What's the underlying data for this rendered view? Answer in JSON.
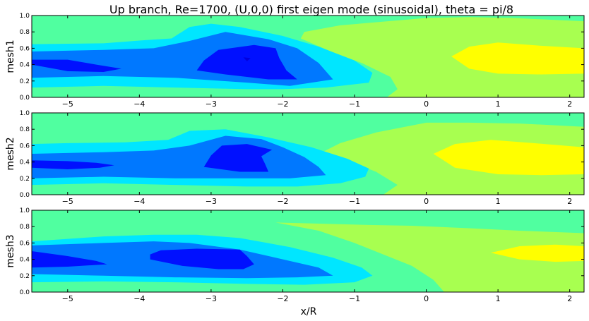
{
  "chart_data": {
    "type": "contour",
    "title": "Up branch, Re=1700, (U,0,0) first eigen mode (sinusoidal), theta = pi/8",
    "xlabel": "x/R",
    "xlim": [
      -5.5,
      2.2
    ],
    "ylim": [
      0.0,
      1.0
    ],
    "x_ticks": [
      "−5",
      "−4",
      "−3",
      "−2",
      "−1",
      "0",
      "1",
      "2"
    ],
    "x_tick_values": [
      -5,
      -4,
      -3,
      -2,
      -1,
      0,
      1,
      2
    ],
    "y_ticks": [
      "0.0",
      "0.2",
      "0.4",
      "0.6",
      "0.8",
      "1.0"
    ],
    "y_tick_values": [
      0.0,
      0.2,
      0.4,
      0.6,
      0.8,
      1.0
    ],
    "levels_colors": [
      "#0000e0",
      "#0010ff",
      "#0078ff",
      "#00e6ff",
      "#50ffa0",
      "#a8ff50",
      "#ffff00"
    ],
    "panels": [
      {
        "ylabel": "mesh1",
        "regions": [
          {
            "color": "#50ffa0",
            "points": [
              [
                -5.5,
                0
              ],
              [
                2.2,
                0
              ],
              [
                2.2,
                1
              ],
              [
                -5.5,
                1
              ]
            ]
          },
          {
            "color": "#a8ff50",
            "points": [
              [
                -0.55,
                0
              ],
              [
                2.2,
                0
              ],
              [
                2.2,
                0.93
              ],
              [
                1.2,
                0.97
              ],
              [
                0.6,
                0.98
              ],
              [
                0.0,
                0.97
              ],
              [
                -1.2,
                0.88
              ],
              [
                -1.7,
                0.8
              ],
              [
                -1.75,
                0.72
              ],
              [
                -1.3,
                0.55
              ],
              [
                -0.9,
                0.42
              ],
              [
                -0.5,
                0.25
              ],
              [
                -0.4,
                0.1
              ]
            ]
          },
          {
            "color": "#ffff00",
            "points": [
              [
                0.35,
                0.5
              ],
              [
                0.6,
                0.62
              ],
              [
                1.0,
                0.67
              ],
              [
                1.6,
                0.63
              ],
              [
                2.2,
                0.6
              ],
              [
                2.2,
                0.29
              ],
              [
                1.6,
                0.28
              ],
              [
                1.0,
                0.29
              ],
              [
                0.6,
                0.35
              ]
            ]
          },
          {
            "color": "#00e6ff",
            "points": [
              [
                -5.5,
                0.12
              ],
              [
                -4.5,
                0.14
              ],
              [
                -3.5,
                0.12
              ],
              [
                -2.5,
                0.1
              ],
              [
                -2.0,
                0.1
              ],
              [
                -1.4,
                0.12
              ],
              [
                -0.8,
                0.18
              ],
              [
                -0.75,
                0.3
              ],
              [
                -1.0,
                0.45
              ],
              [
                -1.5,
                0.62
              ],
              [
                -2.0,
                0.75
              ],
              [
                -2.6,
                0.86
              ],
              [
                -3.0,
                0.9
              ],
              [
                -3.3,
                0.86
              ],
              [
                -3.55,
                0.72
              ],
              [
                -3.9,
                0.7
              ],
              [
                -4.5,
                0.66
              ],
              [
                -5.5,
                0.65
              ]
            ]
          },
          {
            "color": "#0078ff",
            "points": [
              [
                -5.5,
                0.24
              ],
              [
                -4.5,
                0.26
              ],
              [
                -3.5,
                0.24
              ],
              [
                -2.5,
                0.18
              ],
              [
                -1.9,
                0.14
              ],
              [
                -1.3,
                0.22
              ],
              [
                -1.5,
                0.42
              ],
              [
                -1.8,
                0.6
              ],
              [
                -2.2,
                0.71
              ],
              [
                -2.8,
                0.8
              ],
              [
                -3.3,
                0.69
              ],
              [
                -3.8,
                0.6
              ],
              [
                -4.5,
                0.58
              ],
              [
                -5.5,
                0.56
              ]
            ]
          },
          {
            "color": "#0010ff",
            "points": [
              [
                -3.2,
                0.33
              ],
              [
                -2.8,
                0.28
              ],
              [
                -2.2,
                0.22
              ],
              [
                -1.8,
                0.22
              ],
              [
                -1.95,
                0.33
              ],
              [
                -2.05,
                0.48
              ],
              [
                -2.1,
                0.6
              ],
              [
                -2.4,
                0.64
              ],
              [
                -2.9,
                0.58
              ],
              [
                -3.1,
                0.45
              ]
            ]
          },
          {
            "color": "#0010ff",
            "points": [
              [
                -5.5,
                0.4
              ],
              [
                -5.0,
                0.32
              ],
              [
                -4.5,
                0.31
              ],
              [
                -4.25,
                0.35
              ],
              [
                -4.6,
                0.4
              ],
              [
                -5.0,
                0.46
              ],
              [
                -5.5,
                0.46
              ]
            ]
          },
          {
            "color": "#0000e0",
            "points": [
              [
                -2.55,
                0.49
              ],
              [
                -2.45,
                0.48
              ],
              [
                -2.5,
                0.44
              ]
            ]
          }
        ]
      },
      {
        "ylabel": "mesh2",
        "regions": [
          {
            "color": "#50ffa0",
            "points": [
              [
                -5.5,
                0
              ],
              [
                2.2,
                0
              ],
              [
                2.2,
                1
              ],
              [
                -5.5,
                1
              ]
            ]
          },
          {
            "color": "#a8ff50",
            "points": [
              [
                -0.6,
                0
              ],
              [
                2.2,
                0
              ],
              [
                2.2,
                0.83
              ],
              [
                1.3,
                0.87
              ],
              [
                0.6,
                0.88
              ],
              [
                0.0,
                0.88
              ],
              [
                -0.7,
                0.76
              ],
              [
                -1.2,
                0.63
              ],
              [
                -1.45,
                0.52
              ],
              [
                -1.1,
                0.42
              ],
              [
                -0.7,
                0.28
              ],
              [
                -0.4,
                0.12
              ]
            ]
          },
          {
            "color": "#ffff00",
            "points": [
              [
                0.1,
                0.5
              ],
              [
                0.4,
                0.62
              ],
              [
                0.9,
                0.67
              ],
              [
                1.5,
                0.63
              ],
              [
                2.2,
                0.58
              ],
              [
                2.2,
                0.25
              ],
              [
                1.6,
                0.24
              ],
              [
                1.0,
                0.25
              ],
              [
                0.4,
                0.33
              ]
            ]
          },
          {
            "color": "#00e6ff",
            "points": [
              [
                -5.5,
                0.12
              ],
              [
                -4.5,
                0.14
              ],
              [
                -3.5,
                0.12
              ],
              [
                -2.5,
                0.1
              ],
              [
                -1.8,
                0.1
              ],
              [
                -1.2,
                0.14
              ],
              [
                -0.85,
                0.22
              ],
              [
                -0.8,
                0.32
              ],
              [
                -1.1,
                0.44
              ],
              [
                -1.6,
                0.58
              ],
              [
                -2.2,
                0.7
              ],
              [
                -2.8,
                0.8
              ],
              [
                -3.3,
                0.78
              ],
              [
                -3.6,
                0.67
              ],
              [
                -4.2,
                0.64
              ],
              [
                -5.0,
                0.63
              ],
              [
                -5.5,
                0.62
              ]
            ]
          },
          {
            "color": "#0078ff",
            "points": [
              [
                -5.5,
                0.2
              ],
              [
                -4.5,
                0.22
              ],
              [
                -3.5,
                0.2
              ],
              [
                -2.5,
                0.2
              ],
              [
                -1.9,
                0.2
              ],
              [
                -1.4,
                0.24
              ],
              [
                -1.5,
                0.34
              ],
              [
                -1.7,
                0.46
              ],
              [
                -2.0,
                0.58
              ],
              [
                -2.3,
                0.68
              ],
              [
                -2.8,
                0.72
              ],
              [
                -3.3,
                0.6
              ],
              [
                -3.8,
                0.54
              ],
              [
                -4.5,
                0.52
              ],
              [
                -5.5,
                0.5
              ]
            ]
          },
          {
            "color": "#0010ff",
            "points": [
              [
                -3.1,
                0.34
              ],
              [
                -2.6,
                0.28
              ],
              [
                -2.2,
                0.28
              ],
              [
                -2.25,
                0.38
              ],
              [
                -2.3,
                0.47
              ],
              [
                -2.15,
                0.55
              ],
              [
                -2.5,
                0.62
              ],
              [
                -2.85,
                0.6
              ],
              [
                -3.0,
                0.48
              ]
            ]
          },
          {
            "color": "#0010ff",
            "points": [
              [
                -5.5,
                0.33
              ],
              [
                -5.0,
                0.31
              ],
              [
                -4.55,
                0.33
              ],
              [
                -4.35,
                0.36
              ],
              [
                -4.6,
                0.39
              ],
              [
                -5.0,
                0.41
              ],
              [
                -5.5,
                0.42
              ]
            ]
          }
        ]
      },
      {
        "ylabel": "mesh3",
        "regions": [
          {
            "color": "#50ffa0",
            "points": [
              [
                -5.5,
                0
              ],
              [
                2.2,
                0
              ],
              [
                2.2,
                1
              ],
              [
                -5.5,
                1
              ]
            ]
          },
          {
            "color": "#a8ff50",
            "points": [
              [
                0.25,
                0
              ],
              [
                2.2,
                0
              ],
              [
                2.2,
                0.72
              ],
              [
                1.3,
                0.75
              ],
              [
                0.6,
                0.78
              ],
              [
                -0.2,
                0.81
              ],
              [
                -0.8,
                0.82
              ],
              [
                -2.1,
                0.85
              ],
              [
                -1.5,
                0.75
              ],
              [
                -1.0,
                0.6
              ],
              [
                -0.6,
                0.46
              ],
              [
                -0.2,
                0.32
              ],
              [
                0.1,
                0.15
              ]
            ]
          },
          {
            "color": "#ffff00",
            "points": [
              [
                0.9,
                0.48
              ],
              [
                1.3,
                0.56
              ],
              [
                1.8,
                0.58
              ],
              [
                2.2,
                0.56
              ],
              [
                2.2,
                0.38
              ],
              [
                1.8,
                0.37
              ],
              [
                1.3,
                0.4
              ]
            ]
          },
          {
            "color": "#00e6ff",
            "points": [
              [
                -5.5,
                0.12
              ],
              [
                -4.5,
                0.13
              ],
              [
                -3.5,
                0.12
              ],
              [
                -2.5,
                0.1
              ],
              [
                -1.7,
                0.09
              ],
              [
                -1.0,
                0.12
              ],
              [
                -0.75,
                0.2
              ],
              [
                -0.9,
                0.3
              ],
              [
                -1.3,
                0.42
              ],
              [
                -1.9,
                0.55
              ],
              [
                -2.6,
                0.66
              ],
              [
                -3.2,
                0.7
              ],
              [
                -3.8,
                0.7
              ],
              [
                -4.5,
                0.68
              ],
              [
                -5.5,
                0.62
              ]
            ]
          },
          {
            "color": "#0078ff",
            "points": [
              [
                -5.5,
                0.22
              ],
              [
                -4.5,
                0.2
              ],
              [
                -3.5,
                0.18
              ],
              [
                -2.5,
                0.17
              ],
              [
                -1.8,
                0.18
              ],
              [
                -1.3,
                0.2
              ],
              [
                -1.5,
                0.3
              ],
              [
                -2.0,
                0.4
              ],
              [
                -2.6,
                0.52
              ],
              [
                -3.3,
                0.6
              ],
              [
                -3.8,
                0.62
              ],
              [
                -4.5,
                0.6
              ],
              [
                -5.5,
                0.57
              ]
            ]
          },
          {
            "color": "#0010ff",
            "points": [
              [
                -3.85,
                0.4
              ],
              [
                -3.4,
                0.32
              ],
              [
                -2.9,
                0.28
              ],
              [
                -2.55,
                0.28
              ],
              [
                -2.4,
                0.34
              ],
              [
                -2.5,
                0.44
              ],
              [
                -2.6,
                0.52
              ],
              [
                -3.2,
                0.53
              ],
              [
                -3.7,
                0.51
              ],
              [
                -3.85,
                0.46
              ]
            ]
          },
          {
            "color": "#0010ff",
            "points": [
              [
                -5.5,
                0.3
              ],
              [
                -5.0,
                0.31
              ],
              [
                -4.45,
                0.34
              ],
              [
                -4.6,
                0.38
              ],
              [
                -5.0,
                0.44
              ],
              [
                -5.5,
                0.5
              ]
            ]
          }
        ]
      }
    ]
  }
}
